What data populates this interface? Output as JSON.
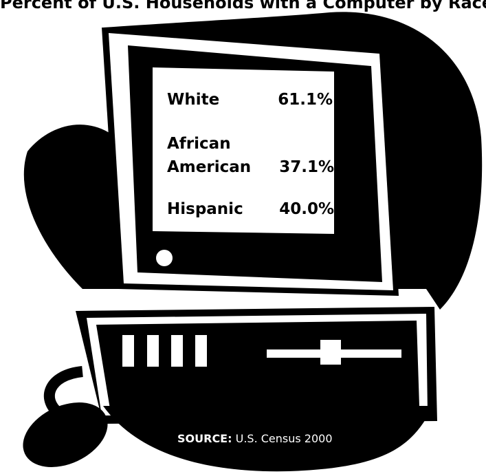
{
  "chart_data": {
    "type": "table",
    "title": "Percent of U.S. Households with a Computer by Race",
    "rows": [
      {
        "label": "White",
        "value": "61.1%"
      },
      {
        "label": "African American",
        "value": "37.1%"
      },
      {
        "label": "Hispanic",
        "value": "40.0%"
      }
    ],
    "values": [
      61.1,
      37.1,
      40.0
    ],
    "unit": "%"
  },
  "source": {
    "label": "SOURCE:",
    "text": "U.S. Census 2000"
  },
  "colors": {
    "ink": "#000000",
    "paper": "#ffffff"
  }
}
